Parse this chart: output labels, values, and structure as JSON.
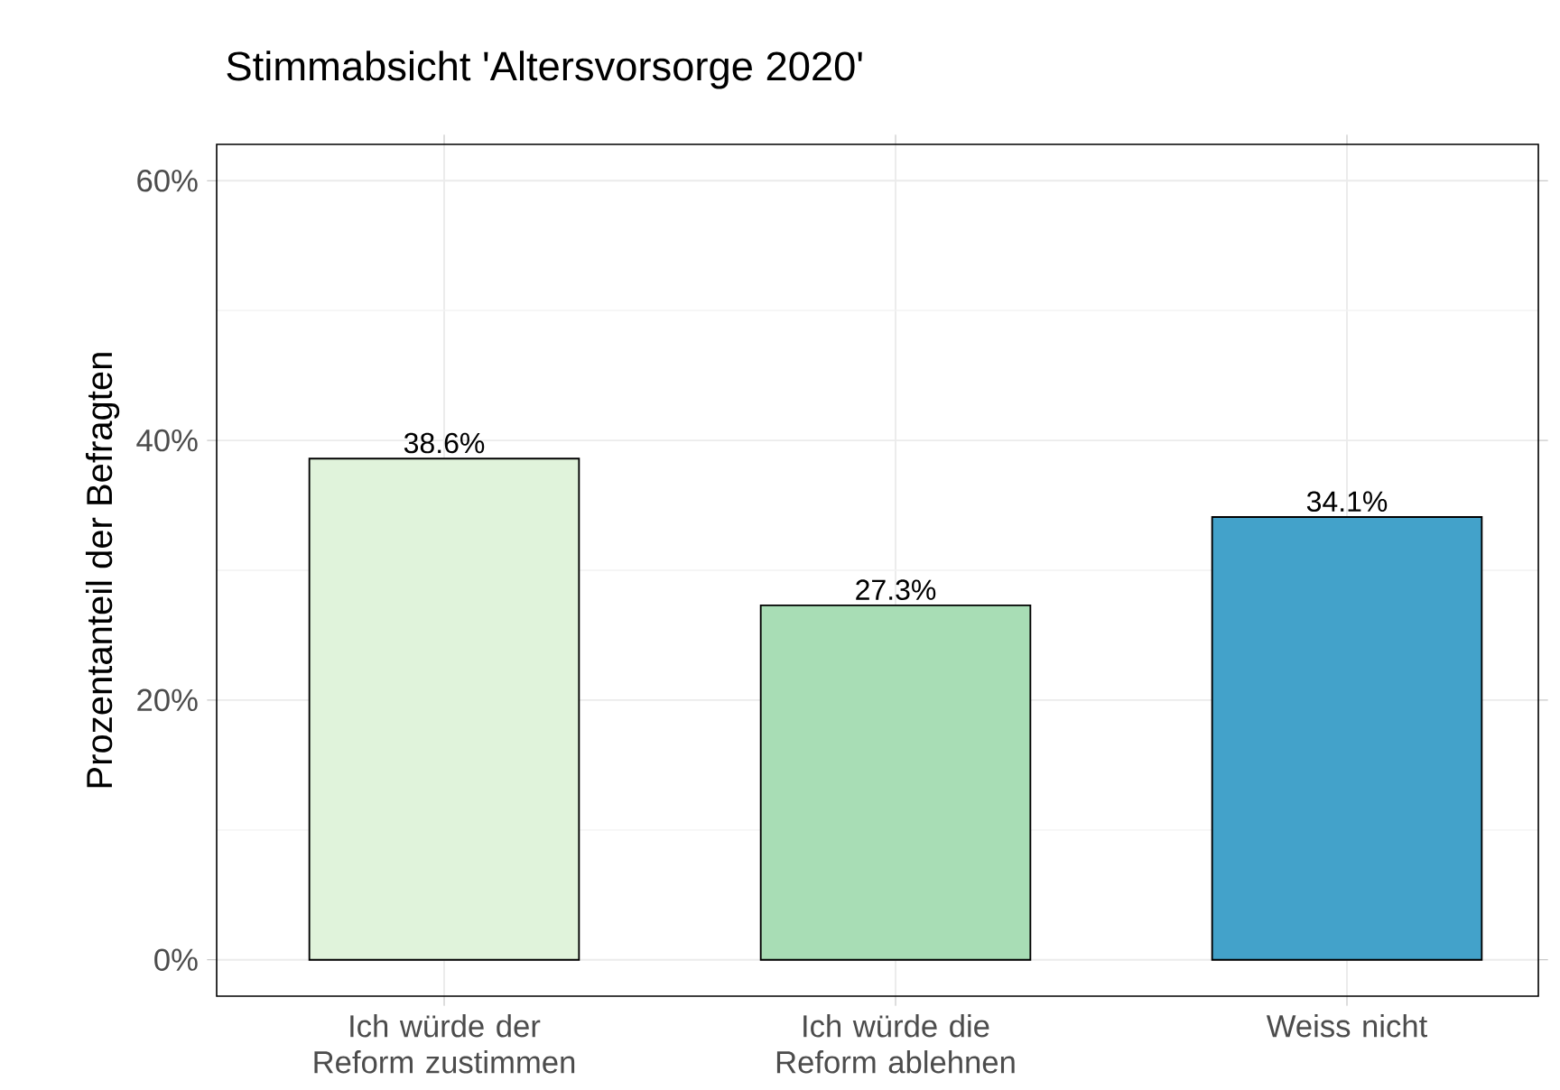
{
  "chart_data": {
    "type": "bar",
    "title": "Stimmabsicht 'Altersvorsorge 2020'",
    "ylabel": "Prozentanteil der Befragten",
    "categories": [
      "Ich würde der Reform zustimmen",
      "Ich würde die Reform ablehnen",
      "Weiss nicht"
    ],
    "values": [
      38.6,
      27.3,
      34.1
    ],
    "colors": [
      "#e0f3db",
      "#a8ddb5",
      "#43a2ca"
    ],
    "value_labels": [
      "38.6%",
      "27.3%",
      "34.1%"
    ],
    "ylim": [
      -2.8,
      62.8
    ],
    "yticks": [
      {
        "value": 0,
        "label": "0%"
      },
      {
        "value": 20,
        "label": "20%"
      },
      {
        "value": 40,
        "label": "40%"
      },
      {
        "value": 60,
        "label": "60%"
      }
    ],
    "grid": true
  }
}
